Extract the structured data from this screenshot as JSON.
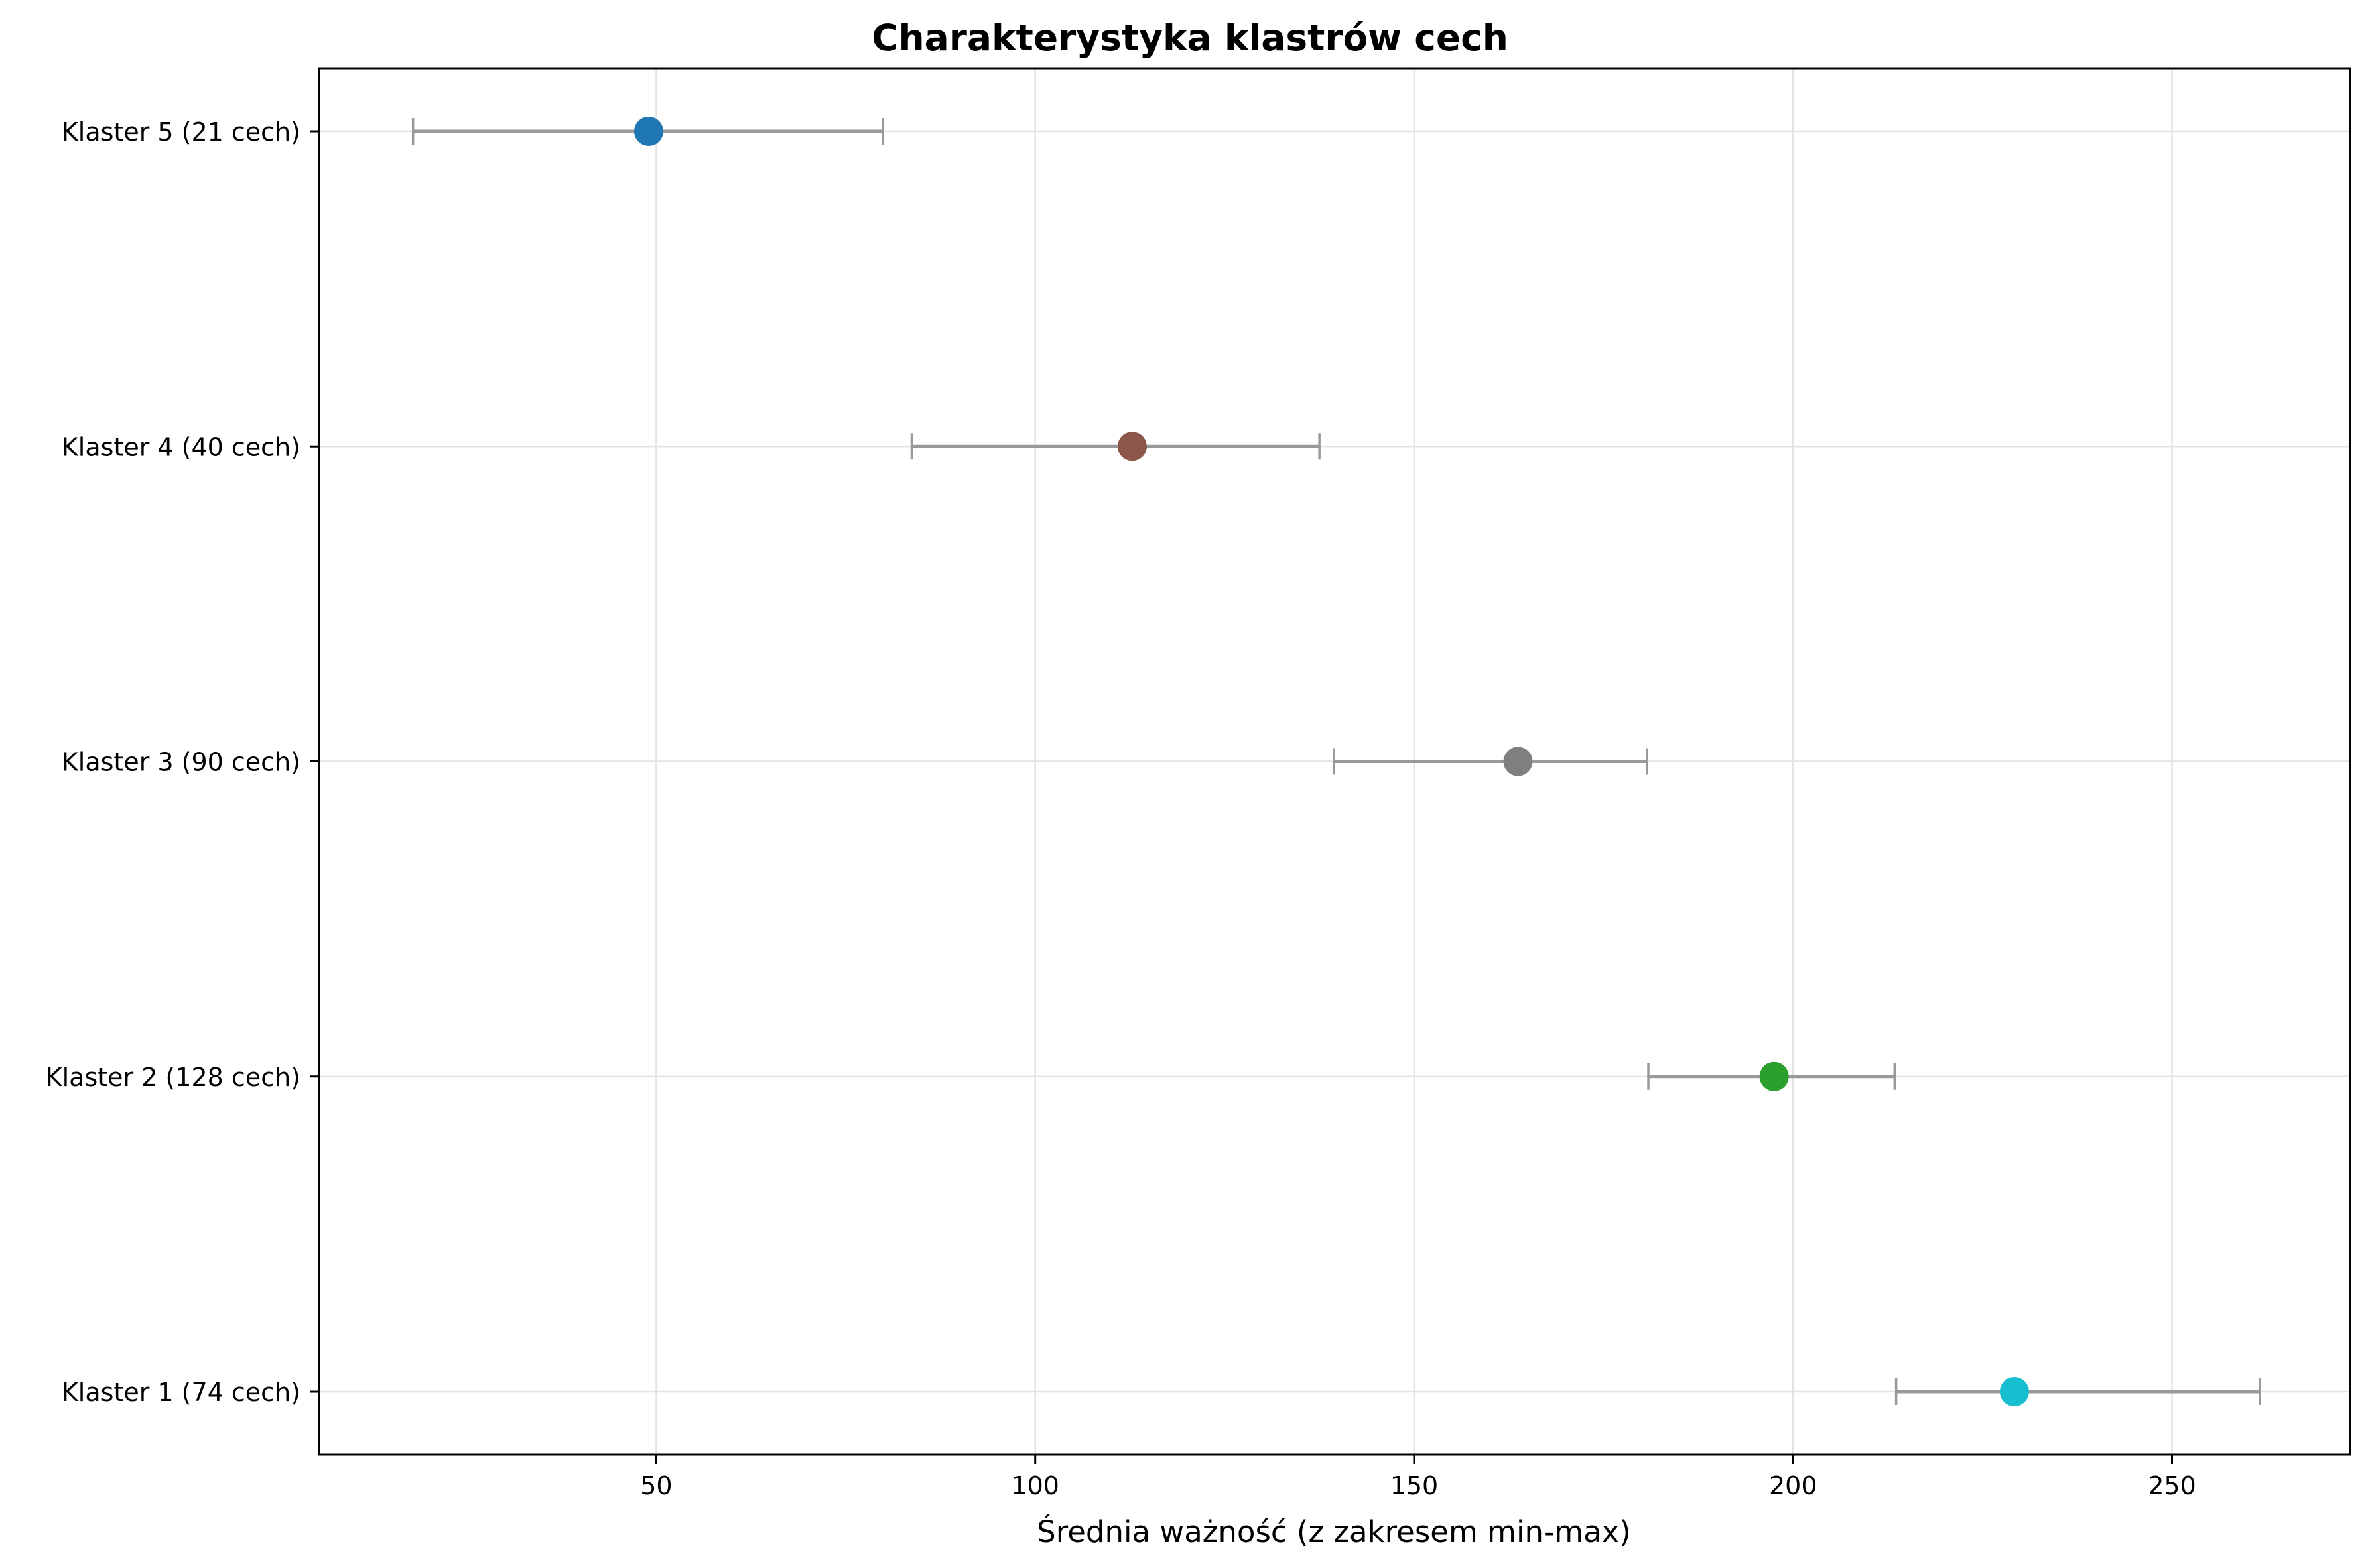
{
  "chart_data": {
    "type": "scatter",
    "title": "Charakterystyka klastrów cech",
    "xlabel": "Średnia ważność (z zakresem min-max)",
    "ylabel": "",
    "xlim": [
      5.5,
      273.5
    ],
    "x_ticks": [
      50,
      100,
      150,
      200,
      250
    ],
    "grid": true,
    "error_bar_color": "#999999",
    "clusters": [
      {
        "label": "Klaster 1 (74 cech)",
        "mean": 229.2,
        "min": 213.6,
        "max": 261.6,
        "color": "#17becf"
      },
      {
        "label": "Klaster 2 (128 cech)",
        "mean": 197.5,
        "min": 180.9,
        "max": 213.4,
        "color": "#2ca02c"
      },
      {
        "label": "Klaster 3 (90 cech)",
        "mean": 163.7,
        "min": 139.4,
        "max": 180.7,
        "color": "#7f7f7f"
      },
      {
        "label": "Klaster 4 (40 cech)",
        "mean": 112.8,
        "min": 83.7,
        "max": 137.5,
        "color": "#8c564b"
      },
      {
        "label": "Klaster 5 (21 cech)",
        "mean": 49.0,
        "min": 17.9,
        "max": 79.9,
        "color": "#1f77b4"
      }
    ]
  }
}
